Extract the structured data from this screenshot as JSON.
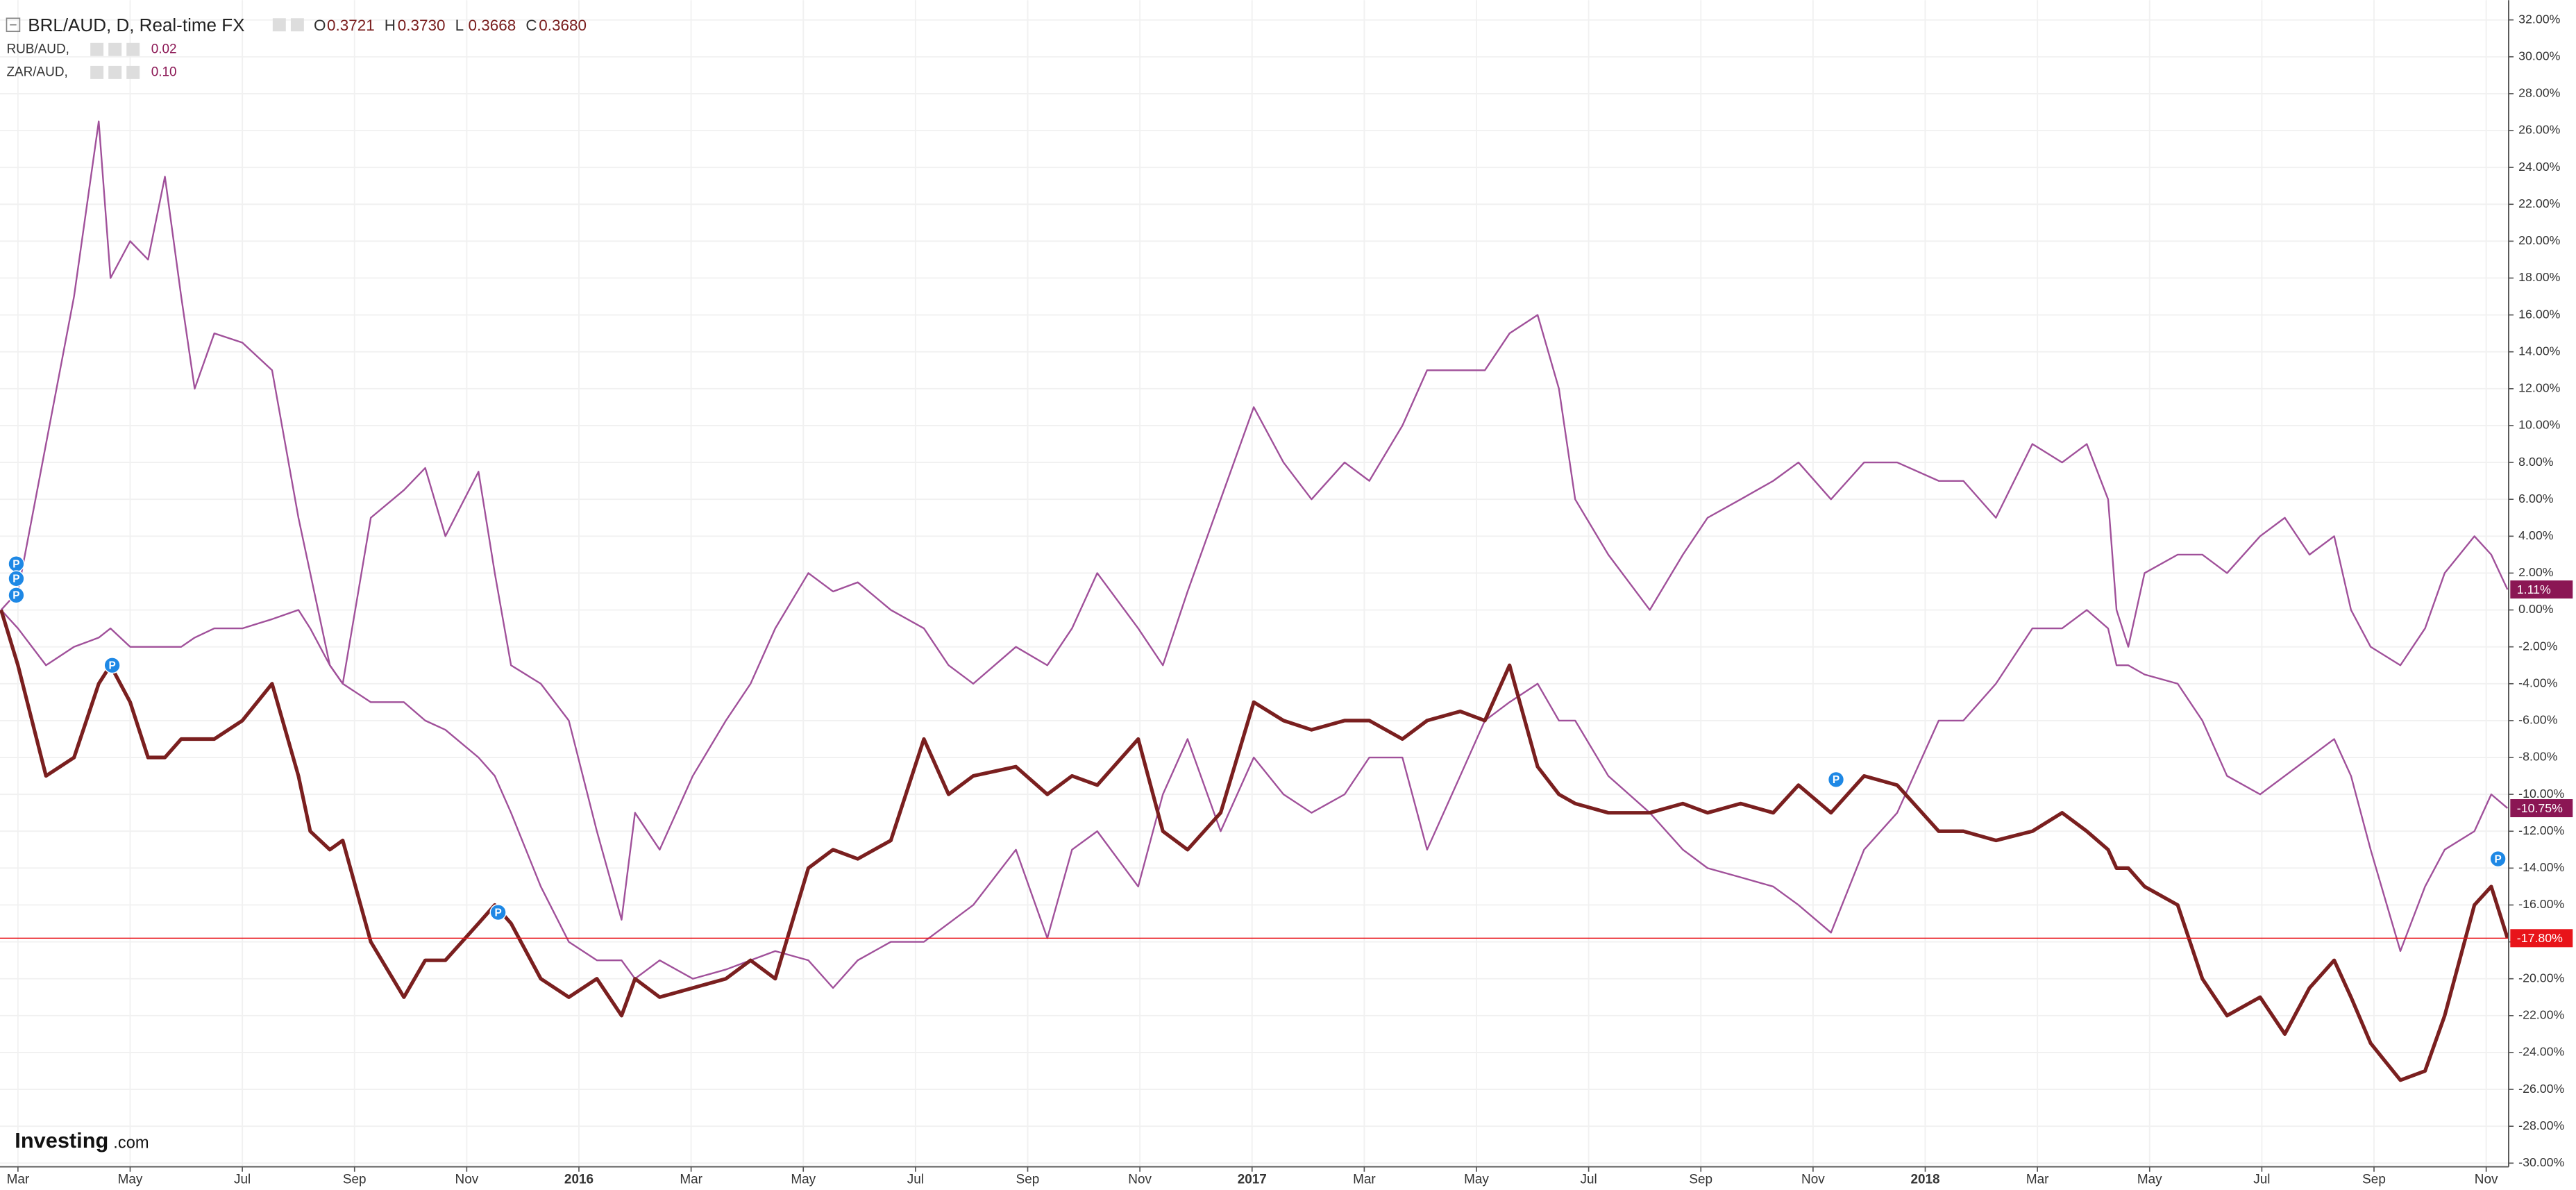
{
  "chart_data": {
    "type": "line",
    "title": "BRL/AUD, D, Real-time FX",
    "ohlc": [
      {
        "key": "O",
        "value": "0.3721"
      },
      {
        "key": "H",
        "value": "0.3730"
      },
      {
        "key": "L",
        "value": "0.3668"
      },
      {
        "key": "C",
        "value": "0.3680"
      }
    ],
    "watermark": {
      "brand": "Investing",
      "suffix": ".com"
    },
    "xlim": [
      1.68,
      46.4
    ],
    "ylim": [
      -30.2,
      33.07
    ],
    "grid": true,
    "xticks": [
      {
        "value": 2,
        "label": "Mar"
      },
      {
        "value": 4,
        "label": "May"
      },
      {
        "value": 6,
        "label": "Jul"
      },
      {
        "value": 8,
        "label": "Sep"
      },
      {
        "value": 10,
        "label": "Nov"
      },
      {
        "value": 12,
        "label": "2016"
      },
      {
        "value": 14,
        "label": "Mar"
      },
      {
        "value": 16,
        "label": "May"
      },
      {
        "value": 18,
        "label": "Jul"
      },
      {
        "value": 20,
        "label": "Sep"
      },
      {
        "value": 22,
        "label": "Nov"
      },
      {
        "value": 24,
        "label": "2017"
      },
      {
        "value": 26,
        "label": "Mar"
      },
      {
        "value": 28,
        "label": "May"
      },
      {
        "value": 30,
        "label": "Jul"
      },
      {
        "value": 32,
        "label": "Sep"
      },
      {
        "value": 34,
        "label": "Nov"
      },
      {
        "value": 36,
        "label": "2018"
      },
      {
        "value": 38,
        "label": "Mar"
      },
      {
        "value": 40,
        "label": "May"
      },
      {
        "value": 42,
        "label": "Jul"
      },
      {
        "value": 44,
        "label": "Sep"
      },
      {
        "value": 46,
        "label": "Nov"
      }
    ],
    "yticks": [
      {
        "value": -30,
        "label": "-30.00%"
      },
      {
        "value": -28,
        "label": "-28.00%"
      },
      {
        "value": -26,
        "label": "-26.00%"
      },
      {
        "value": -24,
        "label": "-24.00%"
      },
      {
        "value": -22,
        "label": "-22.00%"
      },
      {
        "value": -20,
        "label": "-20.00%"
      },
      {
        "value": -18,
        "label": "-18.00%"
      },
      {
        "value": -16,
        "label": "-16.00%"
      },
      {
        "value": -14,
        "label": "-14.00%"
      },
      {
        "value": -12,
        "label": "-12.00%"
      },
      {
        "value": -10,
        "label": "-10.00%"
      },
      {
        "value": -8,
        "label": "-8.00%"
      },
      {
        "value": -6,
        "label": "-6.00%"
      },
      {
        "value": -4,
        "label": "-4.00%"
      },
      {
        "value": -2,
        "label": "-2.00%"
      },
      {
        "value": 0,
        "label": "0.00%"
      },
      {
        "value": 2,
        "label": "2.00%"
      },
      {
        "value": 4,
        "label": "4.00%"
      },
      {
        "value": 6,
        "label": "6.00%"
      },
      {
        "value": 8,
        "label": "8.00%"
      },
      {
        "value": 10,
        "label": "10.00%"
      },
      {
        "value": 12,
        "label": "12.00%"
      },
      {
        "value": 14,
        "label": "14.00%"
      },
      {
        "value": 16,
        "label": "16.00%"
      },
      {
        "value": 18,
        "label": "18.00%"
      },
      {
        "value": 20,
        "label": "20.00%"
      },
      {
        "value": 22,
        "label": "22.00%"
      },
      {
        "value": 24,
        "label": "24.00%"
      },
      {
        "value": 26,
        "label": "26.00%"
      },
      {
        "value": 28,
        "label": "28.00%"
      },
      {
        "value": 30,
        "label": "30.00%"
      },
      {
        "value": 32,
        "label": "32.00%"
      }
    ],
    "x": [
      1.7,
      2.0,
      2.5,
      3.0,
      3.44,
      3.65,
      4.0,
      4.32,
      4.62,
      4.91,
      5.15,
      5.5,
      6.0,
      6.53,
      7.0,
      7.21,
      7.56,
      7.79,
      8.29,
      8.88,
      9.26,
      9.62,
      10.21,
      10.5,
      10.79,
      11.32,
      11.82,
      12.32,
      12.76,
      13.0,
      13.44,
      14.03,
      14.62,
      15.06,
      15.5,
      16.09,
      16.53,
      16.97,
      17.56,
      18.15,
      18.59,
      19.03,
      19.79,
      20.35,
      20.79,
      21.24,
      21.97,
      22.41,
      22.85,
      23.44,
      24.03,
      24.56,
      25.06,
      25.65,
      26.09,
      26.68,
      27.12,
      27.71,
      28.15,
      28.59,
      29.09,
      29.47,
      29.76,
      30.35,
      31.09,
      31.68,
      32.12,
      32.71,
      33.29,
      33.74,
      34.32,
      34.91,
      35.5,
      36.24,
      36.68,
      37.26,
      37.91,
      38.44,
      38.88,
      39.26,
      39.41,
      39.62,
      39.91,
      40.5,
      40.94,
      41.38,
      41.97,
      42.41,
      42.85,
      43.29,
      43.59,
      43.94,
      44.47,
      44.91,
      45.26,
      45.79,
      46.09,
      46.38
    ],
    "series": [
      {
        "color": "#7a1f1f",
        "width": 2.2,
        "last_label": "-17.80%",
        "label_color": "#e8141a",
        "price_line": true,
        "values": [
          0,
          -3,
          -9,
          -8,
          -4,
          -3,
          -5,
          -8,
          -8,
          -7,
          -7,
          -7,
          -6,
          -4,
          -9,
          -12,
          -13,
          -12.5,
          -18,
          -21,
          -19,
          -19,
          -17,
          -16,
          -17,
          -20,
          -21,
          -20,
          -22,
          -20,
          -21,
          -20.5,
          -20,
          -19,
          -20,
          -14,
          -13,
          -13.5,
          -12.5,
          -7,
          -10,
          -9,
          -8.5,
          -10,
          -9,
          -9.5,
          -7,
          -12,
          -13,
          -11,
          -5,
          -6,
          -6.5,
          -6,
          -6,
          -7,
          -6,
          -5.5,
          -6,
          -3,
          -8.5,
          -10,
          -10.5,
          -11,
          -11,
          -10.5,
          -11,
          -10.5,
          -11,
          -9.5,
          -11,
          -9,
          -9.5,
          -12,
          -12,
          -12.5,
          -12,
          -11,
          -12,
          -13,
          -14,
          -14,
          -15,
          -16,
          -20,
          -22,
          -21,
          -23,
          -20.5,
          -19,
          -21,
          -23.5,
          -25.5,
          -25,
          -22,
          -16,
          -15,
          -17.8
        ]
      },
      {
        "name": "RUB/AUD,",
        "legend_value": "0.02",
        "color": "#a0509a",
        "width": 1,
        "last_label": "1.11%",
        "label_color": "#8b1654",
        "values": [
          0,
          1,
          9,
          17,
          26.5,
          18,
          20,
          19,
          23.5,
          17,
          12,
          15,
          14.5,
          13,
          5,
          2,
          -3,
          -4,
          5,
          6.5,
          7.7,
          4,
          7.5,
          2,
          -3,
          -4,
          -6,
          -12,
          -16.8,
          -11,
          -13,
          -9,
          -6,
          -4,
          -1,
          2,
          1,
          1.5,
          0,
          -1,
          -3,
          -4,
          -2,
          -3,
          -1,
          2,
          -1,
          -3,
          1,
          6,
          11,
          8,
          6,
          8,
          7,
          10,
          13,
          13,
          13,
          15,
          16,
          12,
          6,
          3,
          0,
          3,
          5,
          6,
          7,
          8,
          6,
          8,
          8,
          7,
          7,
          5,
          9,
          8,
          9,
          6,
          0,
          -2,
          2,
          3,
          3,
          2,
          4,
          5,
          3,
          4,
          0,
          -2,
          -3,
          -1,
          2,
          4,
          3,
          1.11
        ]
      },
      {
        "name": "ZAR/AUD,",
        "legend_value": "0.10",
        "color": "#a0509a",
        "width": 1,
        "last_label": "-10.75%",
        "label_color": "#8b1654",
        "values": [
          0,
          -1,
          -3,
          -2,
          -1.5,
          -1,
          -2,
          -2,
          -2,
          -2,
          -1.5,
          -1,
          -1,
          -0.5,
          0,
          -1,
          -3,
          -4,
          -5,
          -5,
          -6,
          -6.5,
          -8,
          -9,
          -11,
          -15,
          -18,
          -19,
          -19,
          -20,
          -19,
          -20,
          -19.5,
          -19,
          -18.5,
          -19,
          -20.5,
          -19,
          -18,
          -18,
          -17,
          -16,
          -13,
          -17.8,
          -13,
          -12,
          -15,
          -10,
          -7,
          -12,
          -8,
          -10,
          -11,
          -10,
          -8,
          -8,
          -13,
          -9,
          -6,
          -5,
          -4,
          -6,
          -6,
          -9,
          -11,
          -13,
          -14,
          -14.5,
          -15,
          -16,
          -17.5,
          -13,
          -11,
          -6,
          -6,
          -4,
          -1,
          -1,
          0,
          -1,
          -3,
          -3,
          -3.5,
          -4,
          -6,
          -9,
          -10,
          -9,
          -8,
          -7,
          -9,
          -13,
          -18.5,
          -15,
          -13,
          -12,
          -10,
          -10.75
        ]
      }
    ],
    "event_markers": {
      "label": "P",
      "color": "#1e88e5",
      "points": [
        {
          "x": 1.97,
          "y": 2.5
        },
        {
          "x": 1.97,
          "y": 1.7
        },
        {
          "x": 1.97,
          "y": 0.8
        },
        {
          "x": 3.68,
          "y": -3
        },
        {
          "x": 10.56,
          "y": -16.4
        },
        {
          "x": 34.41,
          "y": -9.2
        },
        {
          "x": 46.21,
          "y": -13.5
        }
      ]
    }
  }
}
